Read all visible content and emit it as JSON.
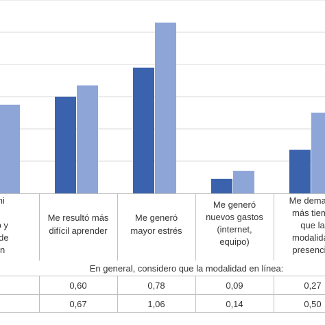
{
  "chart_data": {
    "type": "bar",
    "categories": [
      [
        "mi",
        "",
        "co y",
        "o de",
        "ón"
      ],
      [
        "Me resultó más",
        "difícil aprender"
      ],
      [
        "Me generó",
        "mayor estrés"
      ],
      [
        "Me generó",
        "nuevos gastos",
        "(internet,",
        "equipo)"
      ],
      [
        "Me demand",
        "más tiemp",
        "que la",
        "modalidad",
        "presencial"
      ]
    ],
    "series": [
      {
        "values": [
          null,
          0.6,
          0.78,
          0.09,
          0.27
        ]
      },
      {
        "values": [
          0.55,
          0.67,
          1.06,
          0.14,
          0.5
        ]
      }
    ],
    "series_colors": [
      "#3a62ad",
      "#8ea5d8"
    ],
    "ylim": [
      0,
      1.2
    ],
    "grid": true,
    "table_title": "En general, considero que la modalidad en línea:",
    "table_rows": [
      [
        "0,60",
        "0,78",
        "0,09",
        "0,27"
      ],
      [
        "0,67",
        "1,06",
        "0,14",
        "0,50"
      ]
    ]
  }
}
